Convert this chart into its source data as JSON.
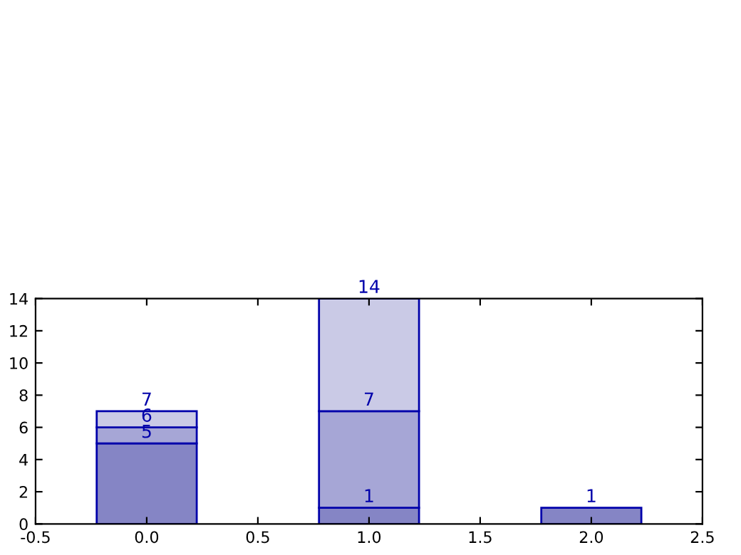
{
  "chart_data": {
    "type": "bar",
    "stacked": true,
    "x": [
      0,
      1,
      2
    ],
    "series": [
      {
        "color": "#8585c5",
        "values": [
          5,
          1,
          1
        ]
      },
      {
        "color": "#a6a6d6",
        "values": [
          1,
          6,
          0
        ]
      },
      {
        "color": "#cacae6",
        "values": [
          1,
          7,
          0
        ]
      }
    ],
    "annotations": [
      {
        "text": "5",
        "x": 0,
        "y": 5
      },
      {
        "text": "6",
        "x": 0,
        "y": 6
      },
      {
        "text": "7",
        "x": 0,
        "y": 7
      },
      {
        "text": "1",
        "x": 1,
        "y": 1
      },
      {
        "text": "7",
        "x": 1,
        "y": 7
      },
      {
        "text": "14",
        "x": 1,
        "y": 14
      },
      {
        "text": "1",
        "x": 2,
        "y": 1
      }
    ],
    "xlim": [
      -0.5,
      2.5
    ],
    "xticks": [
      -0.5,
      {
        "value": 0,
        "label": "0.0"
      },
      0.5,
      {
        "value": 1,
        "label": "1.0"
      },
      1.5,
      {
        "value": 2,
        "label": "2.0"
      },
      2.5
    ],
    "ylim": [
      0,
      14
    ],
    "yticks": [
      0,
      2,
      4,
      6,
      8,
      10,
      12,
      14
    ],
    "grid": false
  }
}
